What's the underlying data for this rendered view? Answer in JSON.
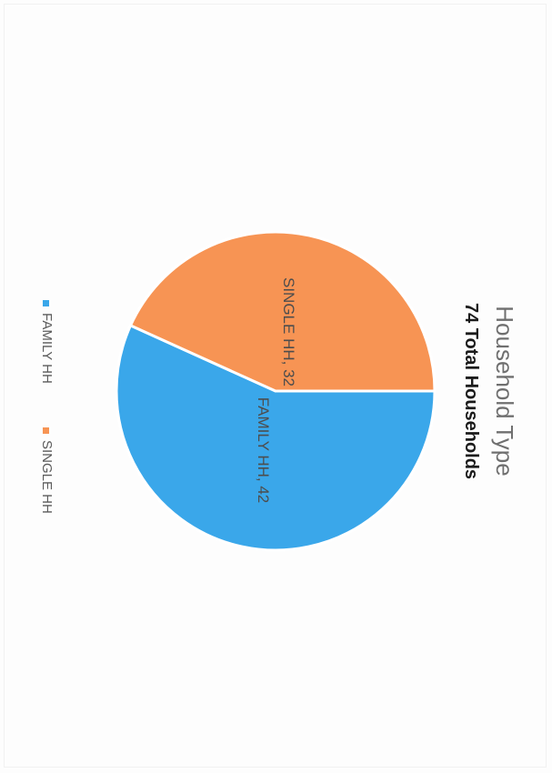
{
  "chart_data": {
    "type": "pie",
    "title": "Household Type",
    "subtitle": "74 Total Households",
    "categories": [
      "FAMILY HH",
      "SINGLE HH"
    ],
    "values": [
      42,
      32
    ],
    "data_labels": [
      "FAMILY HH, 42",
      "SINGLE HH, 32"
    ],
    "colors": [
      "#3aa7ea",
      "#f79454"
    ],
    "legend": [
      "FAMILY HH",
      "SINGLE HH"
    ],
    "legend_position": "bottom",
    "orientation": "rotated 90 degrees clockwise"
  }
}
